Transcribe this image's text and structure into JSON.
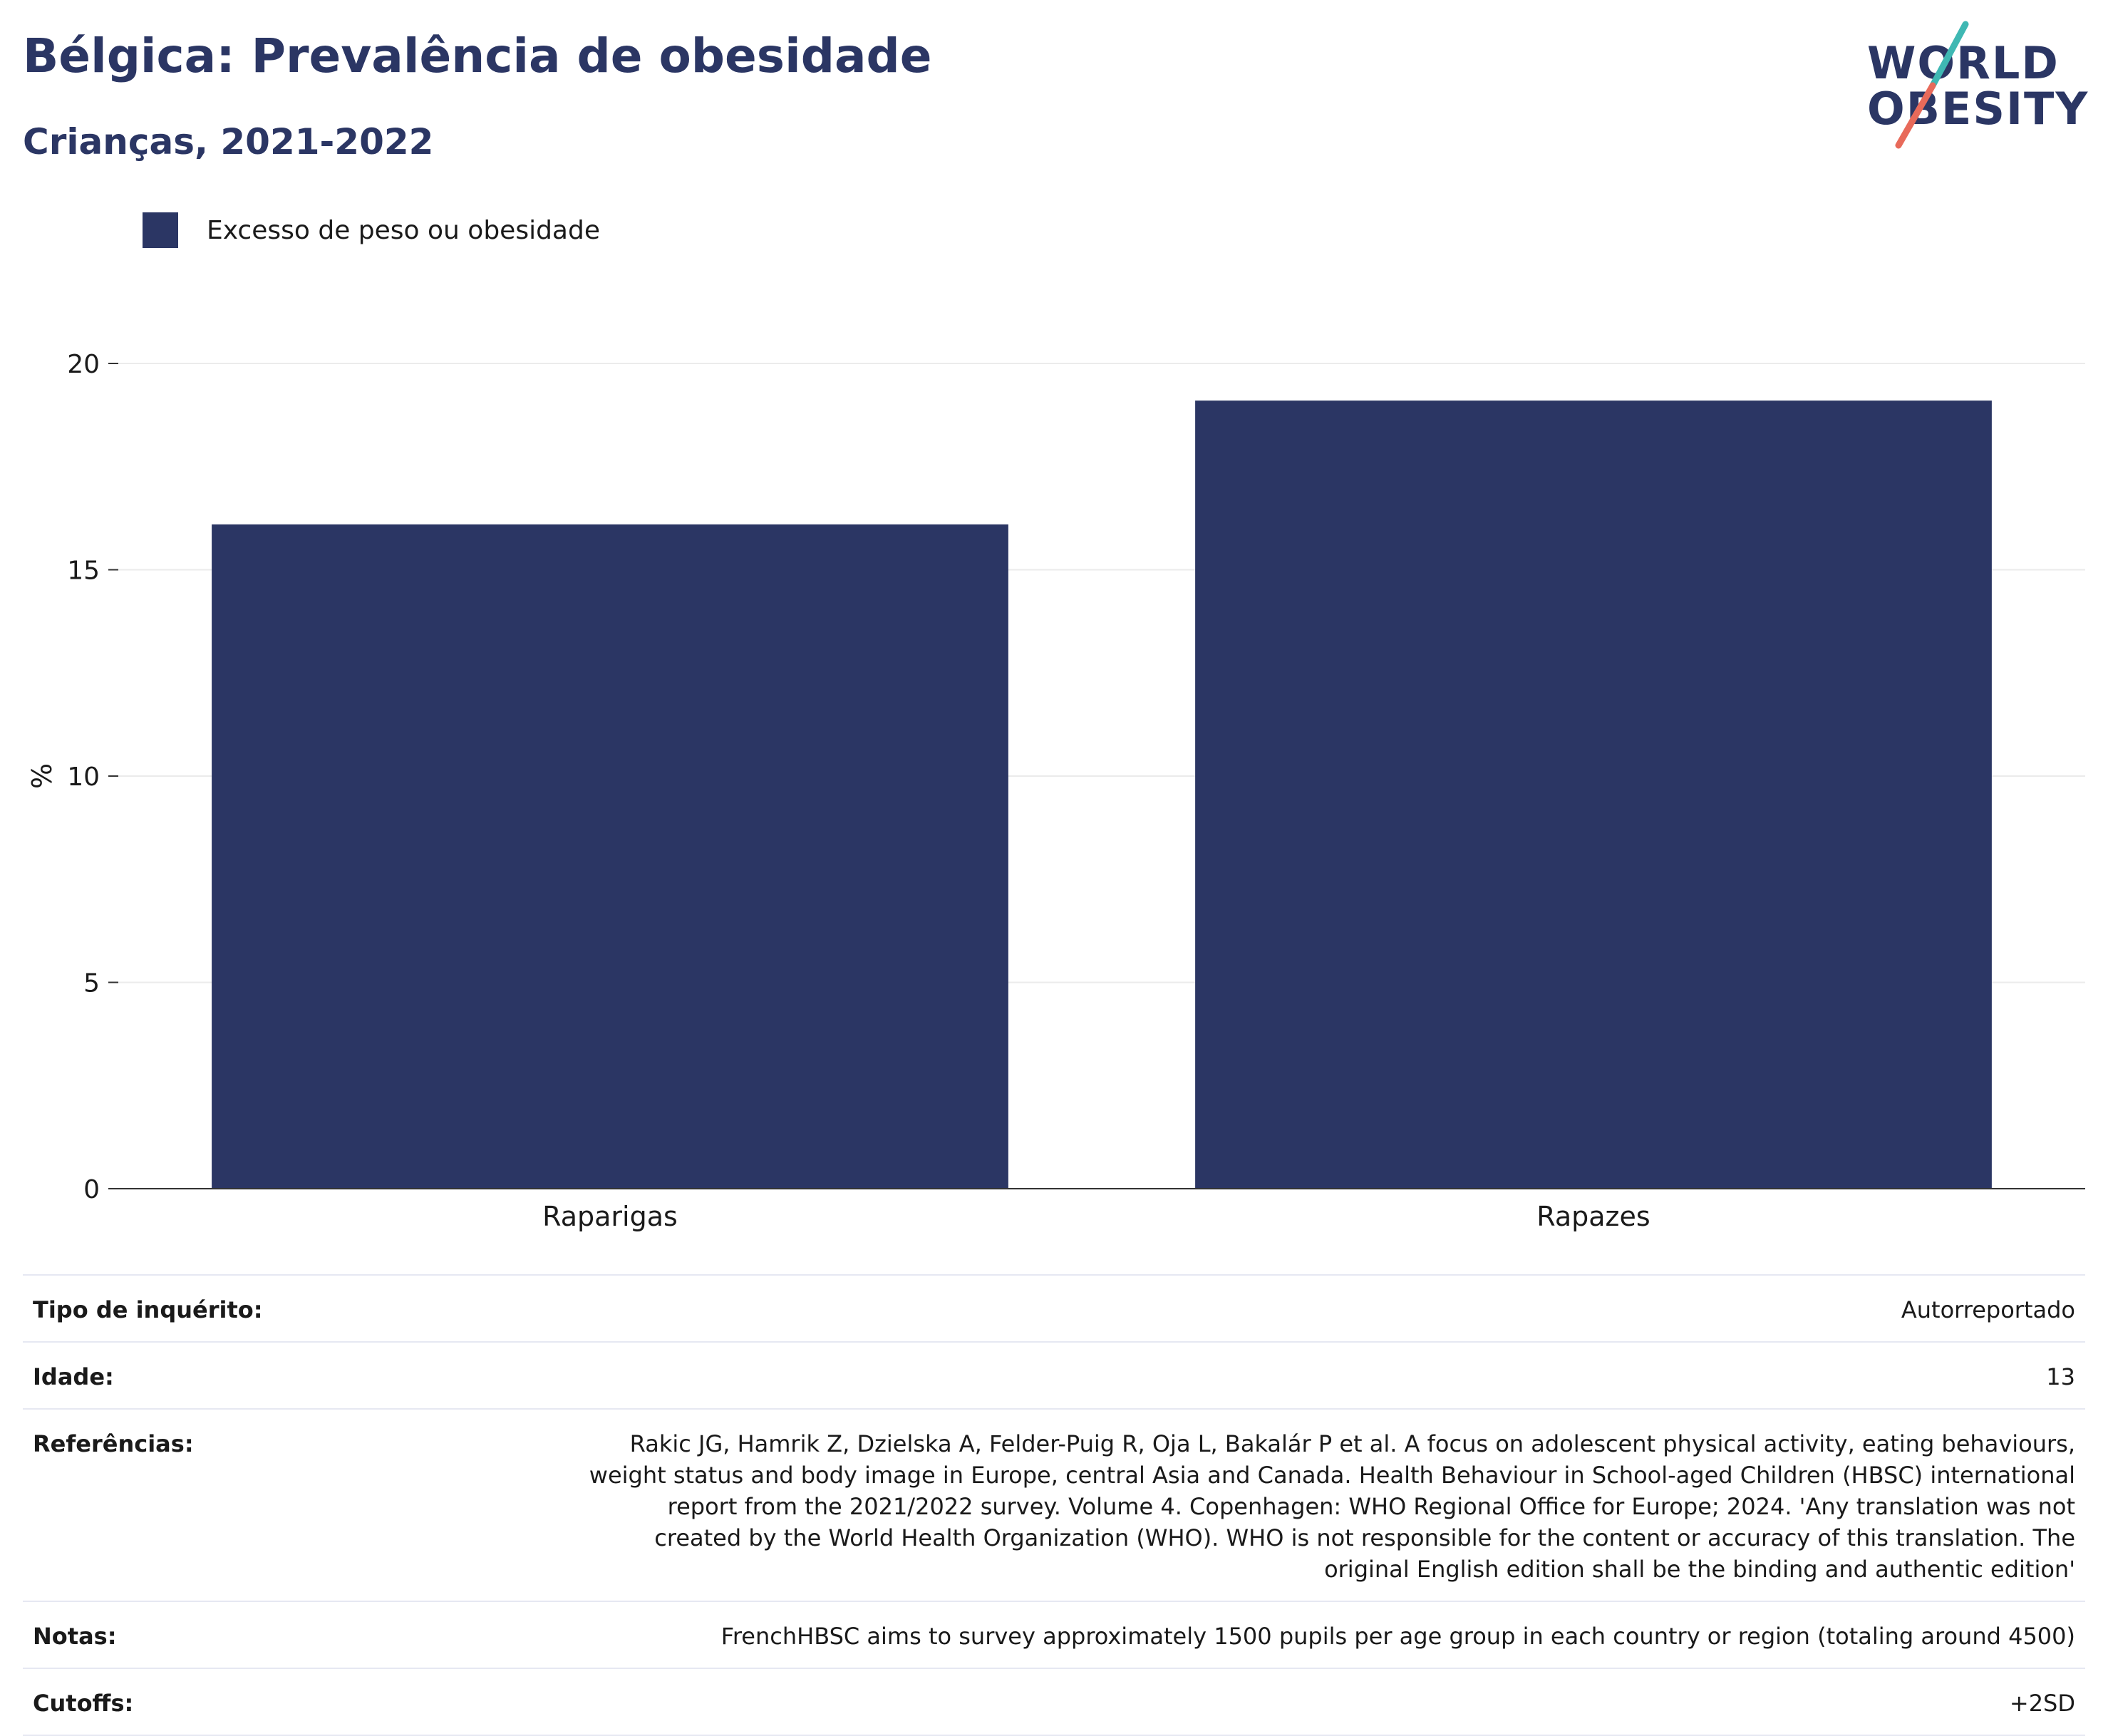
{
  "header": {
    "title": "Bélgica: Prevalência de obesidade",
    "subtitle": "Crianças, 2021-2022"
  },
  "logo": {
    "line1": "WORLD",
    "line2": "OBESITY",
    "colors": {
      "text": "#2b3664",
      "slash_top": "#3fb8b3",
      "slash_bottom": "#e86a5a"
    }
  },
  "chart_data": {
    "type": "bar",
    "categories": [
      "Raparigas",
      "Rapazes"
    ],
    "series": [
      {
        "name": "Excesso de peso ou obesidade",
        "values": [
          16.1,
          19.1
        ],
        "color": "#2b3664"
      }
    ],
    "ylabel": "%",
    "xlabel": "",
    "ylim": [
      0,
      20
    ],
    "yticks": [
      0,
      5,
      10,
      15,
      20
    ],
    "grid": true,
    "legend_position": "top-left"
  },
  "info_table": [
    {
      "label": "Tipo de inquérito:",
      "value": "Autorreportado"
    },
    {
      "label": "Idade:",
      "value": "13"
    },
    {
      "label": "Referências:",
      "value": "Rakic JG, Hamrik Z, Dzielska A, Felder-Puig R, Oja L, Bakalár P et al. A focus on adolescent physical activity, eating behaviours, weight status and body image in Europe, central Asia and Canada. Health Behaviour in School-aged Children (HBSC) international report from the 2021/2022 survey. Volume 4. Copenhagen: WHO Regional Office for Europe; 2024. 'Any translation was not created by the World Health Organization (WHO). WHO is not responsible for the content or accuracy of this translation. The original English edition shall be the binding and authentic edition'"
    },
    {
      "label": "Notas:",
      "value": "FrenchHBSC aims to survey approximately 1500 pupils per age group in each country or region (totaling around 4500)"
    },
    {
      "label": "Cutoffs:",
      "value": "+2SD"
    }
  ]
}
